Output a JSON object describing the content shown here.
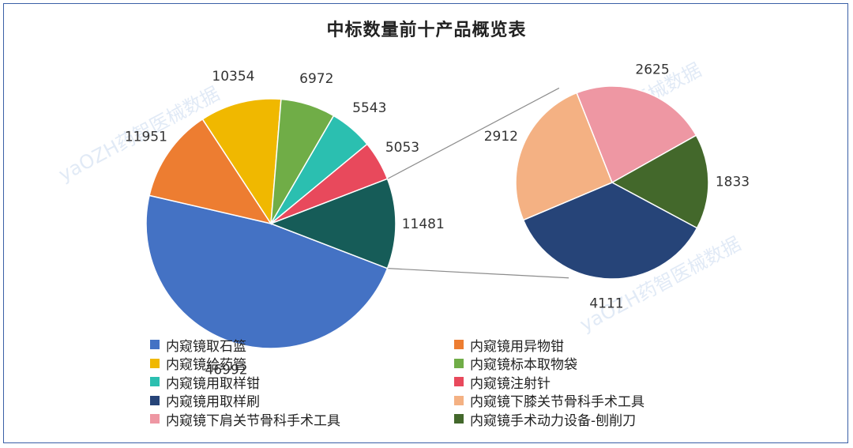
{
  "chart_data": {
    "type": "pie",
    "title": "中标数量前十产品概览表",
    "subtype": "bar-of-pie",
    "slices": [
      {
        "label": "内窥镜取石篮",
        "value": 46992,
        "color": "#4472c4"
      },
      {
        "label": "内窥镜用异物钳",
        "value": 11951,
        "color": "#ed7d31"
      },
      {
        "label": "内窥镜给药管",
        "value": 10354,
        "color": "#f0b800"
      },
      {
        "label": "内窥镜标本取物袋",
        "value": 6972,
        "color": "#70ad47"
      },
      {
        "label": "内窥镜用取样钳",
        "value": 5543,
        "color": "#2bbfb0"
      },
      {
        "label": "内窥镜注射针",
        "value": 5053,
        "color": "#e8495c"
      },
      {
        "label": "内窥镜用取样刷",
        "value": 4111,
        "color": "#264478"
      },
      {
        "label": "内窥镜下膝关节骨科手术工具",
        "value": 2912,
        "color": "#f4b183"
      },
      {
        "label": "内窥镜下肩关节骨科手术工具",
        "value": 2625,
        "color": "#ee97a3"
      },
      {
        "label": "内窥镜手术动力设备-刨削刀",
        "value": 1833,
        "color": "#43682b"
      }
    ],
    "main_pie_other": {
      "value": 11481,
      "color": "#165c58"
    },
    "legend": {
      "position": "bottom",
      "columns": 2
    }
  },
  "watermark": "yaOZH药智医械数据"
}
